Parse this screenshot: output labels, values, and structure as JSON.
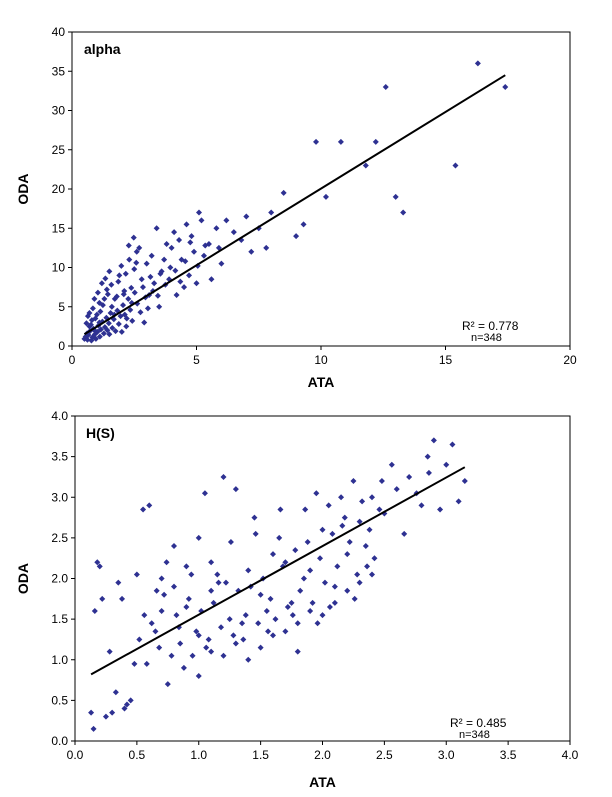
{
  "chart_data": [
    {
      "type": "scatter",
      "title": "alpha",
      "xlabel": "ATA",
      "ylabel": "ODA",
      "xlim": [
        0,
        20
      ],
      "ylim": [
        0,
        40
      ],
      "xticks": [
        0,
        5,
        10,
        15,
        20
      ],
      "yticks": [
        0,
        5,
        10,
        15,
        20,
        25,
        30,
        35,
        40
      ],
      "xtick_labels": [
        "0",
        "5",
        "10",
        "15",
        "20"
      ],
      "ytick_labels": [
        "0",
        "5",
        "10",
        "15",
        "20",
        "25",
        "30",
        "35",
        "40"
      ],
      "grid": false,
      "marker_color": "#2e3192",
      "trendline": {
        "x": [
          0.5,
          17.4
        ],
        "y": [
          1.5,
          34.5
        ],
        "color": "#000000"
      },
      "annotations": {
        "r2": "R² = 0.778",
        "n": "n=348"
      },
      "points": [
        [
          0.5,
          0.9
        ],
        [
          0.6,
          1.6
        ],
        [
          0.7,
          2.5
        ],
        [
          0.8,
          3.3
        ],
        [
          0.9,
          2.0
        ],
        [
          1.0,
          4.0
        ],
        [
          1.1,
          5.5
        ],
        [
          1.3,
          6.0
        ],
        [
          1.4,
          7.2
        ],
        [
          1.5,
          1.5
        ],
        [
          1.6,
          5.0
        ],
        [
          1.8,
          6.3
        ],
        [
          2.0,
          1.8
        ],
        [
          2.1,
          7.0
        ],
        [
          2.3,
          11.0
        ],
        [
          2.5,
          9.8
        ],
        [
          2.6,
          12.0
        ],
        [
          2.8,
          8.5
        ],
        [
          3.0,
          10.5
        ],
        [
          3.2,
          11.5
        ],
        [
          3.4,
          15.0
        ],
        [
          3.6,
          9.5
        ],
        [
          3.8,
          13.0
        ],
        [
          4.0,
          12.5
        ],
        [
          4.2,
          6.5
        ],
        [
          4.4,
          11.0
        ],
        [
          4.6,
          15.5
        ],
        [
          4.8,
          14.0
        ],
        [
          5.0,
          8.0
        ],
        [
          5.2,
          16.0
        ],
        [
          5.5,
          13.0
        ],
        [
          5.8,
          15.0
        ],
        [
          6.0,
          10.5
        ],
        [
          6.5,
          14.5
        ],
        [
          7.0,
          16.5
        ],
        [
          7.5,
          15.0
        ],
        [
          8.0,
          17.0
        ],
        [
          8.5,
          19.5
        ],
        [
          9.0,
          14.0
        ],
        [
          9.8,
          26.0
        ],
        [
          10.2,
          19.0
        ],
        [
          10.8,
          26.0
        ],
        [
          11.8,
          23.0
        ],
        [
          12.2,
          26.0
        ],
        [
          12.6,
          33.0
        ],
        [
          13.0,
          19.0
        ],
        [
          13.3,
          17.0
        ],
        [
          15.4,
          23.0
        ],
        [
          16.3,
          36.0
        ],
        [
          17.4,
          33.0
        ],
        [
          0.7,
          4.2
        ],
        [
          0.9,
          6.0
        ],
        [
          1.1,
          3.0
        ],
        [
          1.2,
          8.0
        ],
        [
          1.5,
          9.5
        ],
        [
          1.7,
          4.0
        ],
        [
          1.9,
          9.0
        ],
        [
          2.2,
          3.5
        ],
        [
          2.4,
          5.5
        ],
        [
          2.7,
          12.5
        ],
        [
          2.9,
          3.0
        ],
        [
          3.1,
          6.5
        ],
        [
          3.3,
          8.0
        ],
        [
          3.5,
          5.0
        ],
        [
          3.7,
          11.0
        ],
        [
          3.9,
          8.5
        ],
        [
          4.1,
          14.5
        ],
        [
          4.3,
          13.5
        ],
        [
          4.5,
          7.5
        ],
        [
          4.7,
          9.0
        ],
        [
          4.9,
          12.0
        ],
        [
          5.1,
          17.0
        ],
        [
          5.3,
          11.5
        ],
        [
          5.6,
          8.5
        ],
        [
          5.9,
          12.5
        ],
        [
          6.2,
          16.0
        ],
        [
          6.8,
          13.5
        ],
        [
          7.2,
          12.0
        ],
        [
          7.8,
          12.5
        ],
        [
          9.3,
          15.5
        ],
        [
          0.55,
          1.2
        ],
        [
          0.62,
          0.8
        ],
        [
          0.66,
          1.4
        ],
        [
          0.72,
          1.9
        ],
        [
          0.78,
          0.7
        ],
        [
          0.82,
          1.1
        ],
        [
          0.86,
          2.2
        ],
        [
          0.92,
          1.5
        ],
        [
          0.96,
          0.9
        ],
        [
          1.02,
          1.8
        ],
        [
          1.06,
          2.6
        ],
        [
          1.12,
          1.2
        ],
        [
          1.16,
          2.1
        ],
        [
          1.22,
          3.1
        ],
        [
          1.28,
          1.6
        ],
        [
          1.32,
          2.4
        ],
        [
          1.38,
          3.6
        ],
        [
          1.42,
          2.0
        ],
        [
          1.48,
          2.9
        ],
        [
          1.55,
          4.2
        ],
        [
          1.62,
          2.3
        ],
        [
          1.68,
          3.4
        ],
        [
          1.75,
          1.9
        ],
        [
          1.82,
          4.5
        ],
        [
          1.88,
          2.8
        ],
        [
          1.95,
          3.8
        ],
        [
          2.05,
          5.2
        ],
        [
          2.12,
          4.0
        ],
        [
          2.18,
          2.5
        ],
        [
          2.26,
          6.0
        ],
        [
          2.34,
          4.6
        ],
        [
          2.42,
          3.2
        ],
        [
          2.52,
          6.8
        ],
        [
          2.62,
          5.4
        ],
        [
          2.75,
          4.3
        ],
        [
          2.85,
          7.5
        ],
        [
          2.95,
          6.2
        ],
        [
          3.05,
          4.8
        ],
        [
          3.15,
          8.8
        ],
        [
          3.25,
          7.0
        ],
        [
          3.45,
          6.4
        ],
        [
          3.55,
          9.2
        ],
        [
          3.75,
          7.8
        ],
        [
          3.95,
          10.0
        ],
        [
          4.15,
          9.6
        ],
        [
          4.35,
          8.2
        ],
        [
          4.55,
          10.8
        ],
        [
          4.75,
          13.2
        ],
        [
          5.05,
          10.2
        ],
        [
          5.35,
          12.8
        ],
        [
          0.58,
          2.9
        ],
        [
          0.64,
          3.8
        ],
        [
          0.76,
          2.7
        ],
        [
          0.84,
          4.8
        ],
        [
          0.94,
          3.5
        ],
        [
          1.04,
          6.8
        ],
        [
          1.14,
          4.4
        ],
        [
          1.24,
          5.2
        ],
        [
          1.34,
          8.6
        ],
        [
          1.44,
          6.6
        ],
        [
          1.58,
          7.8
        ],
        [
          1.72,
          6.0
        ],
        [
          1.86,
          8.2
        ],
        [
          1.98,
          10.2
        ],
        [
          2.08,
          6.6
        ],
        [
          2.16,
          9.2
        ],
        [
          2.28,
          12.8
        ],
        [
          2.38,
          7.4
        ],
        [
          2.48,
          13.8
        ],
        [
          2.58,
          10.6
        ]
      ]
    },
    {
      "type": "scatter",
      "title": "H(S)",
      "xlabel": "ATA",
      "ylabel": "ODA",
      "xlim": [
        0,
        4
      ],
      "ylim": [
        0,
        4
      ],
      "xticks": [
        0,
        0.5,
        1,
        1.5,
        2,
        2.5,
        3,
        3.5,
        4
      ],
      "yticks": [
        0,
        0.5,
        1,
        1.5,
        2,
        2.5,
        3,
        3.5,
        4
      ],
      "xtick_labels": [
        "0.0",
        "0.5",
        "1.0",
        "1.5",
        "2.0",
        "2.5",
        "3.0",
        "3.5",
        "4.0"
      ],
      "ytick_labels": [
        "0.0",
        "0.5",
        "1.0",
        "1.5",
        "2.0",
        "2.5",
        "3.0",
        "3.5",
        "4.0"
      ],
      "grid": false,
      "marker_color": "#2e3192",
      "trendline": {
        "x": [
          0.13,
          3.15
        ],
        "y": [
          0.82,
          3.37
        ],
        "color": "#000000"
      },
      "annotations": {
        "r2": "R² = 0.485",
        "n": "n=348"
      },
      "points": [
        [
          0.13,
          0.35
        ],
        [
          0.15,
          0.15
        ],
        [
          0.2,
          2.15
        ],
        [
          0.22,
          1.75
        ],
        [
          0.3,
          0.35
        ],
        [
          0.35,
          1.95
        ],
        [
          0.4,
          0.4
        ],
        [
          0.45,
          0.5
        ],
        [
          0.5,
          2.05
        ],
        [
          0.55,
          2.85
        ],
        [
          0.6,
          2.9
        ],
        [
          0.65,
          1.35
        ],
        [
          0.7,
          1.6
        ],
        [
          0.75,
          0.7
        ],
        [
          0.8,
          1.9
        ],
        [
          0.85,
          1.2
        ],
        [
          0.9,
          1.65
        ],
        [
          0.95,
          1.05
        ],
        [
          1.0,
          1.3
        ],
        [
          1.05,
          3.05
        ],
        [
          1.1,
          1.85
        ],
        [
          1.15,
          2.05
        ],
        [
          1.2,
          3.25
        ],
        [
          1.25,
          1.5
        ],
        [
          1.3,
          3.1
        ],
        [
          1.35,
          1.45
        ],
        [
          1.4,
          2.1
        ],
        [
          1.45,
          2.75
        ],
        [
          1.5,
          1.8
        ],
        [
          1.55,
          1.6
        ],
        [
          1.6,
          2.3
        ],
        [
          1.65,
          2.5
        ],
        [
          1.7,
          2.2
        ],
        [
          1.75,
          1.7
        ],
        [
          1.8,
          1.1
        ],
        [
          1.85,
          2.0
        ],
        [
          1.9,
          2.1
        ],
        [
          1.95,
          3.05
        ],
        [
          2.0,
          2.6
        ],
        [
          2.05,
          2.9
        ],
        [
          2.1,
          1.9
        ],
        [
          2.15,
          3.0
        ],
        [
          2.2,
          2.3
        ],
        [
          2.25,
          3.2
        ],
        [
          2.3,
          2.7
        ],
        [
          2.35,
          2.4
        ],
        [
          2.4,
          3.0
        ],
        [
          2.5,
          2.8
        ],
        [
          2.6,
          3.1
        ],
        [
          2.7,
          3.25
        ],
        [
          2.8,
          2.9
        ],
        [
          2.85,
          3.5
        ],
        [
          2.9,
          3.7
        ],
        [
          2.95,
          2.85
        ],
        [
          3.0,
          3.4
        ],
        [
          3.05,
          3.65
        ],
        [
          3.15,
          3.2
        ],
        [
          0.25,
          0.3
        ],
        [
          0.33,
          0.6
        ],
        [
          0.42,
          0.45
        ],
        [
          0.52,
          1.25
        ],
        [
          0.58,
          0.95
        ],
        [
          0.62,
          1.45
        ],
        [
          0.68,
          1.15
        ],
        [
          0.72,
          1.8
        ],
        [
          0.78,
          1.05
        ],
        [
          0.82,
          1.55
        ],
        [
          0.88,
          0.9
        ],
        [
          0.92,
          1.75
        ],
        [
          0.98,
          1.35
        ],
        [
          1.02,
          1.6
        ],
        [
          1.08,
          1.25
        ],
        [
          1.12,
          1.7
        ],
        [
          1.18,
          1.4
        ],
        [
          1.22,
          1.95
        ],
        [
          1.28,
          1.3
        ],
        [
          1.32,
          1.85
        ],
        [
          1.38,
          1.55
        ],
        [
          1.42,
          1.9
        ],
        [
          1.48,
          1.45
        ],
        [
          1.52,
          2.0
        ],
        [
          1.58,
          1.75
        ],
        [
          1.62,
          1.5
        ],
        [
          1.68,
          2.15
        ],
        [
          1.72,
          1.65
        ],
        [
          1.78,
          2.35
        ],
        [
          1.82,
          1.85
        ],
        [
          1.88,
          2.45
        ],
        [
          1.92,
          1.7
        ],
        [
          1.98,
          2.25
        ],
        [
          2.02,
          1.95
        ],
        [
          2.08,
          2.55
        ],
        [
          2.12,
          2.15
        ],
        [
          2.18,
          2.75
        ],
        [
          2.22,
          2.45
        ],
        [
          2.28,
          2.05
        ],
        [
          2.32,
          2.95
        ],
        [
          2.38,
          2.6
        ],
        [
          2.42,
          2.25
        ],
        [
          2.48,
          3.2
        ],
        [
          0.16,
          1.6
        ],
        [
          0.18,
          2.2
        ],
        [
          0.28,
          1.1
        ],
        [
          0.38,
          1.75
        ],
        [
          0.48,
          0.95
        ],
        [
          0.56,
          1.55
        ],
        [
          0.66,
          1.85
        ],
        [
          0.74,
          2.2
        ],
        [
          0.84,
          1.4
        ],
        [
          0.94,
          2.05
        ],
        [
          1.06,
          1.15
        ],
        [
          1.16,
          1.95
        ],
        [
          1.26,
          2.45
        ],
        [
          1.36,
          1.25
        ],
        [
          1.46,
          2.55
        ],
        [
          1.56,
          1.35
        ],
        [
          1.66,
          2.85
        ],
        [
          1.76,
          1.55
        ],
        [
          1.86,
          2.85
        ],
        [
          1.96,
          1.45
        ],
        [
          2.06,
          1.65
        ],
        [
          2.16,
          2.65
        ],
        [
          2.26,
          1.75
        ],
        [
          2.36,
          2.15
        ],
        [
          2.46,
          2.85
        ],
        [
          2.56,
          3.4
        ],
        [
          2.66,
          2.55
        ],
        [
          2.76,
          3.05
        ],
        [
          2.86,
          3.3
        ],
        [
          3.1,
          2.95
        ],
        [
          1.0,
          0.8
        ],
        [
          1.1,
          1.1
        ],
        [
          1.2,
          1.05
        ],
        [
          1.3,
          1.2
        ],
        [
          1.4,
          1.0
        ],
        [
          1.5,
          1.15
        ],
        [
          1.6,
          1.3
        ],
        [
          1.7,
          1.35
        ],
        [
          1.8,
          1.45
        ],
        [
          1.9,
          1.6
        ],
        [
          2.0,
          1.55
        ],
        [
          2.1,
          1.7
        ],
        [
          2.2,
          1.85
        ],
        [
          2.3,
          1.95
        ],
        [
          2.4,
          2.05
        ],
        [
          0.7,
          2.0
        ],
        [
          0.8,
          2.4
        ],
        [
          0.9,
          2.15
        ],
        [
          1.0,
          2.5
        ],
        [
          1.1,
          2.2
        ]
      ]
    }
  ]
}
